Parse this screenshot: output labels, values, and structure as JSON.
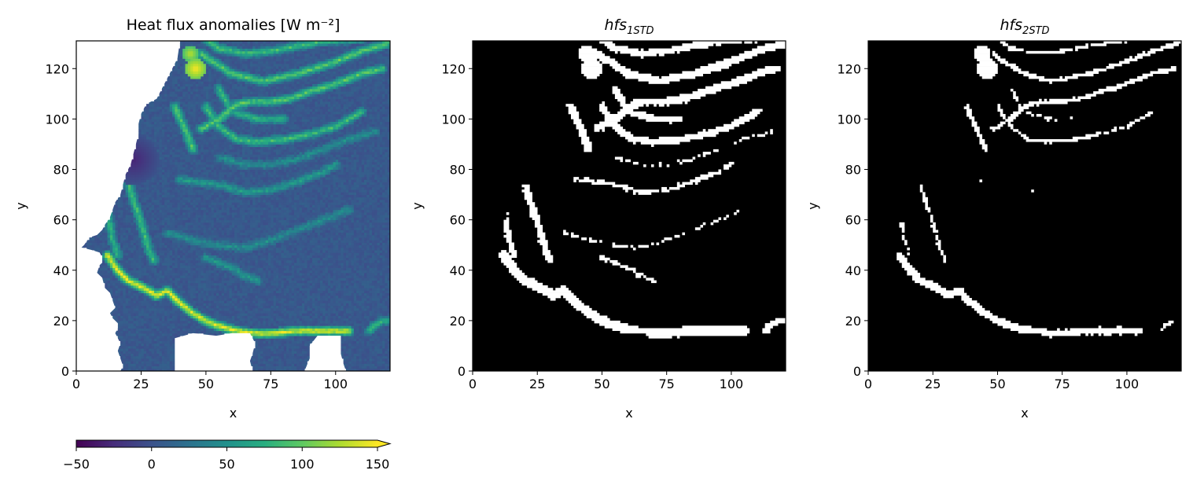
{
  "chart_data": [
    {
      "type": "heatmap",
      "title": "Heat flux anomalies [W m⁻²]",
      "xlabel": "x",
      "ylabel": "y",
      "xlim": [
        0,
        121
      ],
      "ylim": [
        0,
        131
      ],
      "xticks": [
        "0",
        "25",
        "50",
        "75",
        "100"
      ],
      "yticks": [
        "0",
        "20",
        "40",
        "60",
        "80",
        "100",
        "120"
      ],
      "colorbar": {
        "cmap": "viridis",
        "range": [
          -50,
          150
        ],
        "extend": "max",
        "ticks": [
          "−50",
          "0",
          "50",
          "100",
          "150"
        ]
      },
      "background_value": 5,
      "features": [
        {
          "kind": "front",
          "peak": 150,
          "points": [
            [
              12,
              46
            ],
            [
              16,
              40
            ],
            [
              20,
              36
            ],
            [
              24,
              34
            ],
            [
              28,
              32
            ],
            [
              31,
              30
            ],
            [
              35,
              32
            ],
            [
              40,
              27
            ],
            [
              45,
              23
            ],
            [
              50,
              20
            ],
            [
              55,
              18
            ],
            [
              60,
              16.5
            ],
            [
              65,
              15.5
            ],
            [
              70,
              15
            ],
            [
              75,
              15
            ],
            [
              80,
              15.5
            ],
            [
              85,
              16
            ],
            [
              90,
              16
            ],
            [
              95,
              16
            ],
            [
              100,
              16
            ],
            [
              105,
              16
            ]
          ]
        },
        {
          "kind": "front",
          "peak": 90,
          "points": [
            [
              20,
              75
            ],
            [
              22,
              68
            ],
            [
              24,
              62
            ],
            [
              26,
              55
            ],
            [
              28,
              48
            ],
            [
              30,
              44
            ]
          ]
        },
        {
          "kind": "front",
          "peak": 80,
          "points": [
            [
              12,
              64
            ],
            [
              13,
              58
            ],
            [
              14,
              52
            ],
            [
              16,
              46
            ]
          ]
        },
        {
          "kind": "front",
          "peak": 100,
          "points": [
            [
              38,
              105
            ],
            [
              42,
              96
            ],
            [
              45,
              88
            ]
          ]
        },
        {
          "kind": "front",
          "peak": 100,
          "points": [
            [
              48,
              96
            ],
            [
              55,
              100
            ],
            [
              62,
              106
            ],
            [
              68,
              107
            ],
            [
              75,
              107
            ],
            [
              82,
              108
            ],
            [
              90,
              111
            ],
            [
              100,
              114
            ],
            [
              110,
              118
            ],
            [
              118,
              120
            ]
          ]
        },
        {
          "kind": "front",
          "peak": 90,
          "points": [
            [
              50,
              105
            ],
            [
              55,
              97
            ],
            [
              62,
              92
            ],
            [
              70,
              91
            ],
            [
              80,
              92
            ],
            [
              90,
              94
            ],
            [
              100,
              97
            ],
            [
              110,
              103
            ]
          ]
        },
        {
          "kind": "front",
          "peak": 80,
          "points": [
            [
              55,
              112
            ],
            [
              60,
              103
            ],
            [
              70,
              100
            ],
            [
              80,
              100
            ]
          ]
        },
        {
          "kind": "front",
          "peak": 100,
          "points": [
            [
              48,
              126
            ],
            [
              60,
              118
            ],
            [
              72,
              115
            ],
            [
              85,
              118
            ],
            [
              98,
              122
            ],
            [
              110,
              127
            ],
            [
              120,
              130
            ]
          ]
        },
        {
          "kind": "front",
          "peak": 90,
          "points": [
            [
              48,
              133
            ],
            [
              55,
              128
            ],
            [
              65,
              126
            ],
            [
              75,
              127
            ],
            [
              85,
              129
            ],
            [
              95,
              131
            ],
            [
              110,
              132
            ]
          ]
        },
        {
          "kind": "front",
          "peak": 60,
          "points": [
            [
              40,
              76
            ],
            [
              55,
              74
            ],
            [
              65,
              71
            ],
            [
              75,
              72
            ],
            [
              85,
              75
            ],
            [
              95,
              79
            ],
            [
              100,
              82
            ]
          ]
        },
        {
          "kind": "front",
          "peak": 50,
          "points": [
            [
              35,
              55
            ],
            [
              45,
              52
            ],
            [
              55,
              50
            ],
            [
              65,
              49
            ],
            [
              75,
              52
            ],
            [
              85,
              56
            ],
            [
              95,
              60
            ],
            [
              105,
              64
            ]
          ]
        },
        {
          "kind": "front",
          "peak": 50,
          "points": [
            [
              55,
              85
            ],
            [
              65,
              82
            ],
            [
              75,
              82
            ],
            [
              85,
              84
            ],
            [
              95,
              88
            ],
            [
              105,
              92
            ],
            [
              115,
              95
            ]
          ]
        },
        {
          "kind": "front",
          "peak": 60,
          "points": [
            [
              50,
              45
            ],
            [
              60,
              41
            ],
            [
              65,
              38
            ],
            [
              70,
              36
            ]
          ]
        },
        {
          "kind": "front",
          "peak": 80,
          "points": [
            [
              113,
              16
            ],
            [
              115,
              18
            ],
            [
              118,
              20
            ],
            [
              120,
              20
            ]
          ]
        },
        {
          "kind": "blob",
          "peak": 150,
          "center": [
            46,
            120
          ],
          "radius": 4
        },
        {
          "kind": "blob",
          "peak": 130,
          "center": [
            44,
            126
          ],
          "radius": 3
        },
        {
          "kind": "cool",
          "peak": -30,
          "center": [
            22,
            84
          ],
          "radius": 10
        }
      ],
      "mask_polygons": [
        [
          [
            0,
            131
          ],
          [
            40,
            131
          ],
          [
            39,
            124
          ],
          [
            36,
            118
          ],
          [
            33,
            112
          ],
          [
            31,
            108
          ],
          [
            27,
            106
          ],
          [
            25,
            102
          ],
          [
            24,
            98
          ],
          [
            24,
            94
          ],
          [
            23,
            90
          ],
          [
            22,
            86
          ],
          [
            21,
            82
          ],
          [
            19,
            78
          ],
          [
            18,
            74
          ],
          [
            17,
            70
          ],
          [
            15,
            67
          ],
          [
            14,
            64
          ],
          [
            13,
            61
          ],
          [
            11,
            58
          ],
          [
            10,
            56
          ],
          [
            8,
            54
          ],
          [
            5,
            53
          ],
          [
            3,
            50
          ],
          [
            2,
            49
          ],
          [
            6,
            48
          ],
          [
            9,
            47
          ],
          [
            10,
            45
          ],
          [
            10,
            43
          ],
          [
            9,
            42
          ],
          [
            8,
            39
          ],
          [
            10,
            37
          ],
          [
            11,
            33
          ],
          [
            13,
            31
          ],
          [
            14,
            28
          ],
          [
            15,
            25
          ],
          [
            13,
            23
          ],
          [
            14,
            21
          ],
          [
            16,
            19
          ],
          [
            16,
            17
          ],
          [
            15,
            15
          ],
          [
            16,
            13
          ],
          [
            17,
            11
          ],
          [
            16,
            8
          ],
          [
            17,
            5
          ],
          [
            18,
            2
          ],
          [
            17,
            0
          ],
          [
            0,
            0
          ]
        ],
        [
          [
            38,
            0
          ],
          [
            38,
            13
          ],
          [
            45,
            15
          ],
          [
            54,
            14
          ],
          [
            60,
            15
          ],
          [
            67,
            15
          ],
          [
            69,
            11
          ],
          [
            68,
            7
          ],
          [
            67,
            4
          ],
          [
            68,
            0
          ]
        ],
        [
          [
            88,
            0
          ],
          [
            90,
            5
          ],
          [
            90,
            10
          ],
          [
            93,
            14
          ],
          [
            102,
            14
          ],
          [
            102,
            7
          ],
          [
            103,
            3
          ],
          [
            104,
            0
          ]
        ]
      ]
    },
    {
      "type": "heatmap",
      "title": "hfs",
      "title_subscript": "1STD",
      "xlabel": "x",
      "ylabel": "y",
      "xlim": [
        0,
        121
      ],
      "ylim": [
        0,
        131
      ],
      "xticks": [
        "0",
        "25",
        "50",
        "75",
        "100"
      ],
      "yticks": [
        "0",
        "20",
        "40",
        "60",
        "80",
        "100",
        "120"
      ],
      "colors": {
        "true": "#ffffff",
        "false": "#000000"
      },
      "threshold": "1 std"
    },
    {
      "type": "heatmap",
      "title": "hfs",
      "title_subscript": "2STD",
      "xlabel": "x",
      "ylabel": "y",
      "xlim": [
        0,
        121
      ],
      "ylim": [
        0,
        131
      ],
      "xticks": [
        "0",
        "25",
        "50",
        "75",
        "100"
      ],
      "yticks": [
        "0",
        "20",
        "40",
        "60",
        "80",
        "100",
        "120"
      ],
      "colors": {
        "true": "#ffffff",
        "false": "#000000"
      },
      "threshold": "2 std"
    }
  ]
}
